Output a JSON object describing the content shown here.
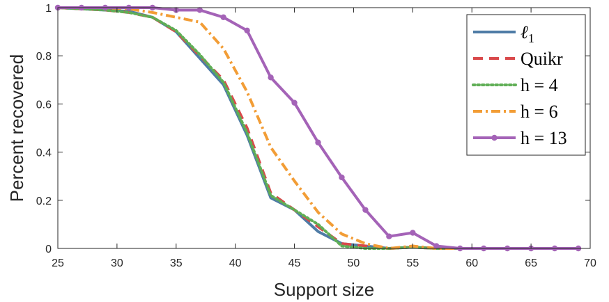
{
  "chart_data": {
    "type": "line",
    "title": "",
    "xlabel": "Support size",
    "ylabel": "Percent recovered",
    "xlim": [
      25,
      70
    ],
    "ylim": [
      0,
      1
    ],
    "xticks": [
      25,
      30,
      35,
      40,
      45,
      50,
      55,
      60,
      65,
      70
    ],
    "yticks": [
      0,
      0.2,
      0.4,
      0.6,
      0.8,
      1
    ],
    "grid": false,
    "legend_position": "top-right",
    "x": [
      25,
      27,
      29,
      31,
      33,
      35,
      37,
      39,
      41,
      43,
      45,
      47,
      49,
      51,
      53,
      55,
      57,
      59,
      61,
      63,
      65,
      67,
      69
    ],
    "series": [
      {
        "name": "ℓ1",
        "label_main": "ℓ",
        "label_sub": "1",
        "color": "#4f7ca6",
        "dash": "solid",
        "marker": false,
        "values": [
          1,
          0.995,
          0.99,
          0.985,
          0.96,
          0.9,
          0.79,
          0.68,
          0.47,
          0.21,
          0.16,
          0.07,
          0.02,
          0.01,
          0,
          0.005,
          0,
          0,
          0,
          0,
          0,
          0,
          0
        ]
      },
      {
        "name": "Quikr",
        "label_main": "Quikr",
        "color": "#d9494b",
        "dash": "dashed",
        "marker": false,
        "values": [
          1,
          0.995,
          0.99,
          0.98,
          0.96,
          0.9,
          0.8,
          0.7,
          0.5,
          0.23,
          0.16,
          0.09,
          0.02,
          0.01,
          0,
          0.005,
          0,
          0,
          0,
          0,
          0,
          0,
          0
        ]
      },
      {
        "name": "h = 4",
        "label_main": "h = 4",
        "color": "#5fae55",
        "dash": "dotted",
        "marker": false,
        "values": [
          1,
          0.995,
          0.99,
          0.98,
          0.96,
          0.905,
          0.805,
          0.69,
          0.48,
          0.22,
          0.16,
          0.1,
          0.01,
          0,
          0,
          0.005,
          0,
          0,
          0,
          0,
          0,
          0,
          0
        ]
      },
      {
        "name": "h = 6",
        "label_main": "h = 6",
        "color": "#f29d36",
        "dash": "dashdot",
        "marker": false,
        "values": [
          1,
          1,
          1,
          0.995,
          0.98,
          0.96,
          0.94,
          0.83,
          0.65,
          0.42,
          0.28,
          0.15,
          0.06,
          0.02,
          0,
          0.01,
          0,
          0,
          0,
          0,
          0,
          0,
          0
        ]
      },
      {
        "name": "h = 13",
        "label_main": "h = 13",
        "color": "#a463b7",
        "dash": "solid",
        "marker": true,
        "values": [
          1,
          1,
          1,
          1,
          1,
          0.99,
          0.99,
          0.96,
          0.905,
          0.71,
          0.605,
          0.44,
          0.295,
          0.16,
          0.05,
          0.065,
          0.01,
          0,
          0,
          0,
          0,
          0,
          0
        ]
      }
    ]
  }
}
